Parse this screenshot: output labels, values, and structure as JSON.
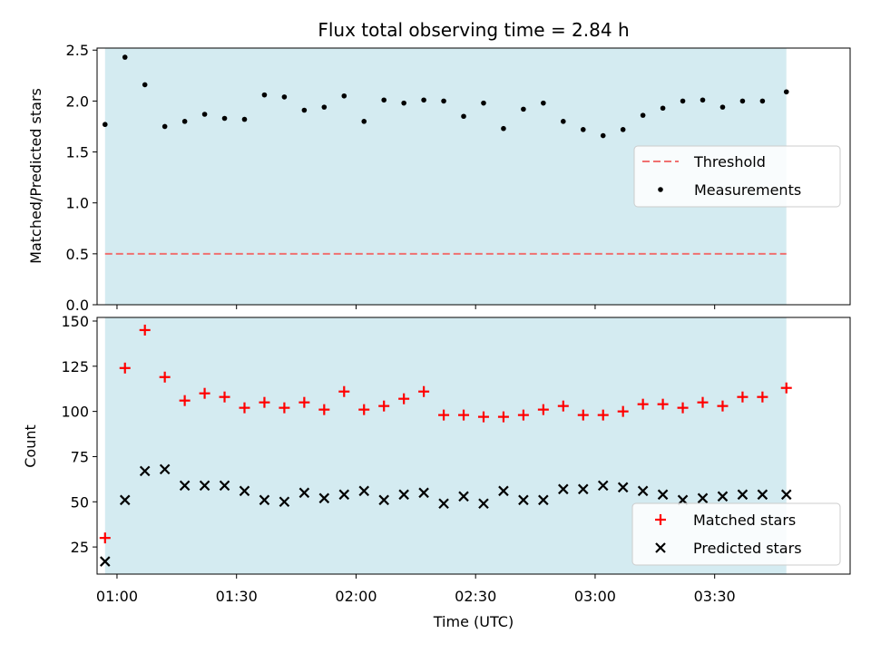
{
  "chart_data": [
    {
      "type": "scatter",
      "title": "Flux total observing time = 2.84 h",
      "xlabel": "",
      "ylabel": "Matched/Predicted stars",
      "ylim": [
        0,
        2.52
      ],
      "yticks": [
        0.0,
        0.5,
        1.0,
        1.5,
        2.0,
        2.5
      ],
      "ytick_labels": [
        "0.0",
        "0.5",
        "1.0",
        "1.5",
        "2.0",
        "2.5"
      ],
      "observing_window": [
        "00:57",
        "03:48"
      ],
      "shade_color": "#d4ebf1",
      "threshold": {
        "name": "Threshold",
        "value": 0.5,
        "color": "#f07070"
      },
      "series": [
        {
          "name": "Measurements",
          "color": "#000000",
          "x": [
            "00:57",
            "01:02",
            "01:07",
            "01:12",
            "01:17",
            "01:22",
            "01:27",
            "01:32",
            "01:37",
            "01:42",
            "01:47",
            "01:52",
            "01:57",
            "02:02",
            "02:07",
            "02:12",
            "02:17",
            "02:22",
            "02:27",
            "02:32",
            "02:37",
            "02:42",
            "02:47",
            "02:52",
            "02:57",
            "03:02",
            "03:07",
            "03:12",
            "03:17",
            "03:22",
            "03:27",
            "03:32",
            "03:37",
            "03:42",
            "03:48"
          ],
          "y": [
            1.77,
            2.43,
            2.16,
            1.75,
            1.8,
            1.87,
            1.83,
            1.82,
            2.06,
            2.04,
            1.91,
            1.94,
            2.05,
            1.8,
            2.01,
            1.98,
            2.01,
            2.0,
            1.85,
            1.98,
            1.73,
            1.92,
            1.98,
            1.8,
            1.72,
            1.66,
            1.72,
            1.86,
            1.93,
            2.0,
            2.01,
            1.94,
            2.0,
            2.0,
            2.09
          ]
        }
      ],
      "legend_position": "center-right"
    },
    {
      "type": "scatter",
      "title": "",
      "xlabel": "Time (UTC)",
      "ylabel": "Count",
      "ylim": [
        10,
        152
      ],
      "yticks": [
        25,
        50,
        75,
        100,
        125,
        150
      ],
      "ytick_labels": [
        "25",
        "50",
        "75",
        "100",
        "125",
        "150"
      ],
      "xlim": [
        "00:55",
        "04:04"
      ],
      "xticks": [
        "01:00",
        "01:30",
        "02:00",
        "02:30",
        "03:00",
        "03:30"
      ],
      "xtick_labels": [
        "01:00",
        "01:30",
        "02:00",
        "02:30",
        "03:00",
        "03:30"
      ],
      "series": [
        {
          "name": "Matched stars",
          "color": "#ff0000",
          "marker": "plus",
          "x": [
            "00:57",
            "01:02",
            "01:07",
            "01:12",
            "01:17",
            "01:22",
            "01:27",
            "01:32",
            "01:37",
            "01:42",
            "01:47",
            "01:52",
            "01:57",
            "02:02",
            "02:07",
            "02:12",
            "02:17",
            "02:22",
            "02:27",
            "02:32",
            "02:37",
            "02:42",
            "02:47",
            "02:52",
            "02:57",
            "03:02",
            "03:07",
            "03:12",
            "03:17",
            "03:22",
            "03:27",
            "03:32",
            "03:37",
            "03:42",
            "03:48"
          ],
          "y": [
            30,
            124,
            145,
            119,
            106,
            110,
            108,
            102,
            105,
            102,
            105,
            101,
            111,
            101,
            103,
            107,
            111,
            98,
            98,
            97,
            97,
            98,
            101,
            103,
            98,
            98,
            100,
            104,
            104,
            102,
            105,
            103,
            108,
            108,
            113
          ]
        },
        {
          "name": "Predicted stars",
          "color": "#000000",
          "marker": "x",
          "x": [
            "00:57",
            "01:02",
            "01:07",
            "01:12",
            "01:17",
            "01:22",
            "01:27",
            "01:32",
            "01:37",
            "01:42",
            "01:47",
            "01:52",
            "01:57",
            "02:02",
            "02:07",
            "02:12",
            "02:17",
            "02:22",
            "02:27",
            "02:32",
            "02:37",
            "02:42",
            "02:47",
            "02:52",
            "02:57",
            "03:02",
            "03:07",
            "03:12",
            "03:17",
            "03:22",
            "03:27",
            "03:32",
            "03:37",
            "03:42",
            "03:48"
          ],
          "y": [
            17,
            51,
            67,
            68,
            59,
            59,
            59,
            56,
            51,
            50,
            55,
            52,
            54,
            56,
            51,
            54,
            55,
            49,
            53,
            49,
            56,
            51,
            51,
            57,
            57,
            59,
            58,
            56,
            54,
            51,
            52,
            53,
            54,
            54,
            54
          ]
        }
      ],
      "legend_position": "bottom-right"
    }
  ]
}
